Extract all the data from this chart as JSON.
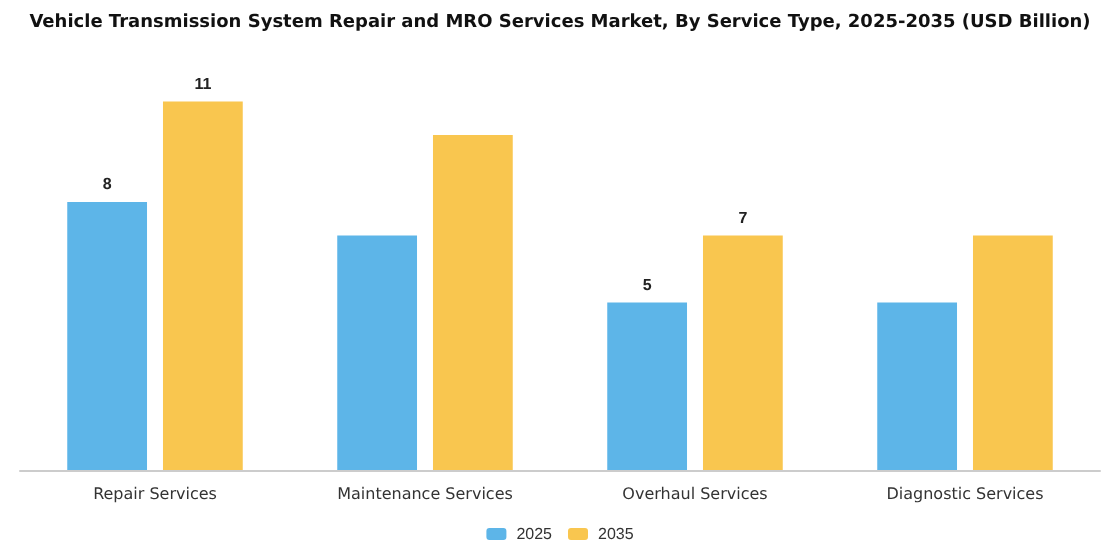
{
  "chart_data": {
    "type": "bar",
    "title": "Vehicle Transmission System Repair and MRO Services Market, By Service Type, 2025-2035 (USD Billion)",
    "categories": [
      "Repair Services",
      "Maintenance Services",
      "Overhaul Services",
      "Diagnostic Services"
    ],
    "series": [
      {
        "name": "2025",
        "color": "#5db5e8",
        "values": [
          8,
          7,
          5,
          5
        ],
        "value_labels": [
          "8",
          null,
          "5",
          null
        ]
      },
      {
        "name": "2035",
        "color": "#f9c64f",
        "values": [
          11,
          10,
          7,
          7
        ],
        "value_labels": [
          "11",
          null,
          "7",
          null
        ]
      }
    ],
    "legend": "bottom"
  }
}
